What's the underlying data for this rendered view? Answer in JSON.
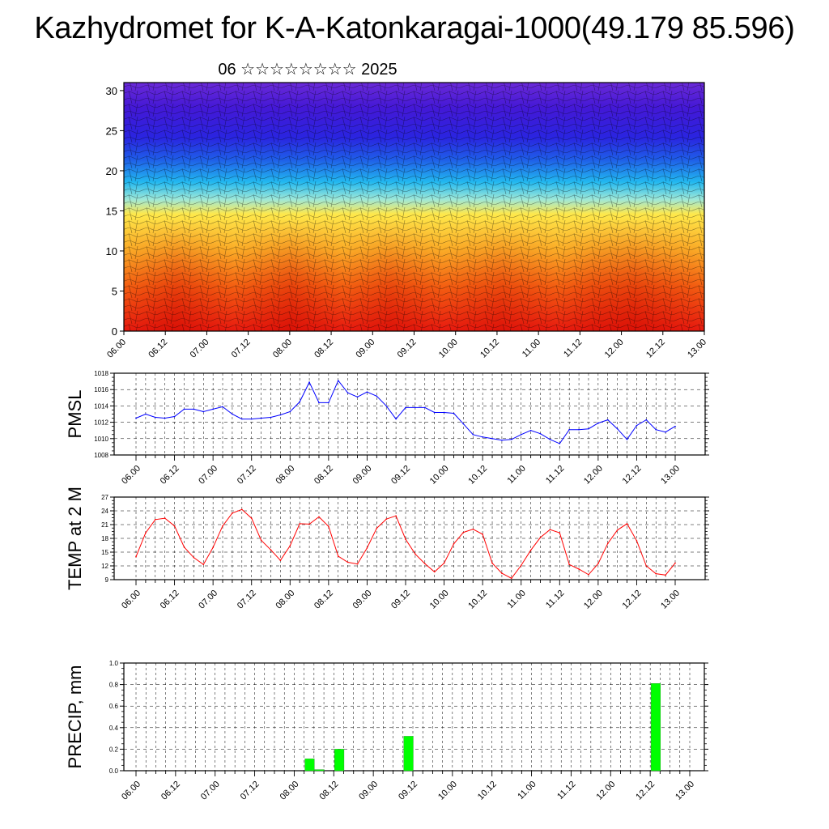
{
  "page": {
    "title": "Kazhydromet for K-A-Katonkaragai-1000(49.179 85.596)",
    "subtitle": "06 ☆☆☆☆☆☆☆☆ 2025"
  },
  "chart_data": [
    {
      "type": "heatmap",
      "title": "",
      "ylim": [
        0,
        31
      ],
      "ytick_labels": [
        "0",
        "5",
        "10",
        "15",
        "20",
        "25",
        "30"
      ],
      "xtick_labels": [
        "06.00",
        "06.12",
        "07.00",
        "07.12",
        "08.00",
        "08.12",
        "09.00",
        "09.12",
        "10.00",
        "10.12",
        "11.00",
        "11.12",
        "12.00",
        "12.12",
        "13.00"
      ],
      "colors": {
        "low": "#e81a10",
        "mid": "#ffe84a",
        "cold": "#1a8cf0",
        "high": "#5a20d8"
      },
      "overlay": "wind-streamlines"
    },
    {
      "type": "line",
      "ylabel": "PMSL",
      "ylim": [
        1008,
        1018
      ],
      "ytick_labels": [
        "1008",
        "1010",
        "1012",
        "1014",
        "1016",
        "1018"
      ],
      "xtick_labels": [
        "06.00",
        "06.12",
        "07.00",
        "07.12",
        "08.00",
        "08.12",
        "09.00",
        "09.12",
        "10.00",
        "10.12",
        "11.00",
        "11.12",
        "12.00",
        "12.12",
        "13.00"
      ],
      "x_step_hours": 3,
      "color": "#0000ff",
      "values": [
        1012.5,
        1013.0,
        1012.6,
        1012.5,
        1012.7,
        1013.6,
        1013.6,
        1013.3,
        1013.6,
        1013.9,
        1013.0,
        1012.4,
        1012.4,
        1012.5,
        1012.6,
        1012.9,
        1013.3,
        1014.5,
        1016.9,
        1014.4,
        1014.4,
        1017.1,
        1015.6,
        1015.1,
        1015.7,
        1015.2,
        1014.0,
        1012.4,
        1013.8,
        1013.8,
        1013.8,
        1013.2,
        1013.2,
        1013.1,
        1011.8,
        1010.5,
        1010.2,
        1010.0,
        1009.8,
        1009.9,
        1010.5,
        1011.0,
        1010.6,
        1009.9,
        1009.4,
        1011.1,
        1011.1,
        1011.2,
        1011.9,
        1012.3,
        1011.2,
        1009.9,
        1011.6,
        1012.3,
        1011.1,
        1010.8,
        1011.5
      ]
    },
    {
      "type": "line",
      "ylabel": "TEMP at 2 M",
      "ylim": [
        9,
        27
      ],
      "ytick_labels": [
        "9",
        "12",
        "15",
        "18",
        "21",
        "24",
        "27"
      ],
      "xtick_labels": [
        "06.00",
        "06.12",
        "07.00",
        "07.12",
        "08.00",
        "08.12",
        "09.00",
        "09.12",
        "10.00",
        "10.12",
        "11.00",
        "11.12",
        "12.00",
        "12.12",
        "13.00"
      ],
      "x_step_hours": 3,
      "color": "#ff0000",
      "values": [
        14.0,
        19.2,
        22.1,
        22.4,
        20.7,
        16.1,
        13.8,
        12.3,
        16.0,
        20.7,
        23.5,
        24.3,
        22.4,
        17.6,
        15.5,
        13.2,
        16.4,
        21.2,
        21.1,
        22.7,
        20.6,
        14.1,
        12.8,
        12.4,
        15.9,
        20.2,
        22.2,
        22.9,
        17.8,
        14.6,
        12.5,
        10.7,
        12.6,
        16.8,
        19.3,
        20.0,
        18.9,
        12.6,
        10.4,
        9.3,
        12.1,
        15.4,
        18.2,
        19.9,
        19.2,
        12.3,
        11.3,
        10.1,
        12.5,
        16.9,
        19.8,
        21.2,
        17.5,
        12.0,
        10.3,
        10.0,
        12.6
      ]
    },
    {
      "type": "bar",
      "ylabel": "PRECIP, mm",
      "ylim": [
        0,
        1.0
      ],
      "ytick_labels": [
        "0.0",
        "0.2",
        "0.4",
        "0.6",
        "0.8",
        "1.0"
      ],
      "xtick_labels": [
        "06.00",
        "06.12",
        "07.00",
        "07.12",
        "08.00",
        "08.12",
        "09.00",
        "09.12",
        "10.00",
        "10.12",
        "11.00",
        "11.12",
        "12.00",
        "12.12",
        "13.00"
      ],
      "x_step_hours": 3,
      "color": "#00ff00",
      "values": [
        0,
        0,
        0,
        0,
        0,
        0,
        0,
        0,
        0,
        0,
        0,
        0,
        0,
        0,
        0,
        0,
        0,
        0.11,
        0.01,
        0,
        0.2,
        0,
        0,
        0,
        0,
        0,
        0,
        0.32,
        0,
        0,
        0,
        0,
        0,
        0,
        0,
        0,
        0,
        0,
        0,
        0,
        0,
        0,
        0,
        0,
        0,
        0,
        0,
        0,
        0,
        0,
        0,
        0,
        0.81,
        0,
        0,
        0,
        0
      ]
    }
  ]
}
